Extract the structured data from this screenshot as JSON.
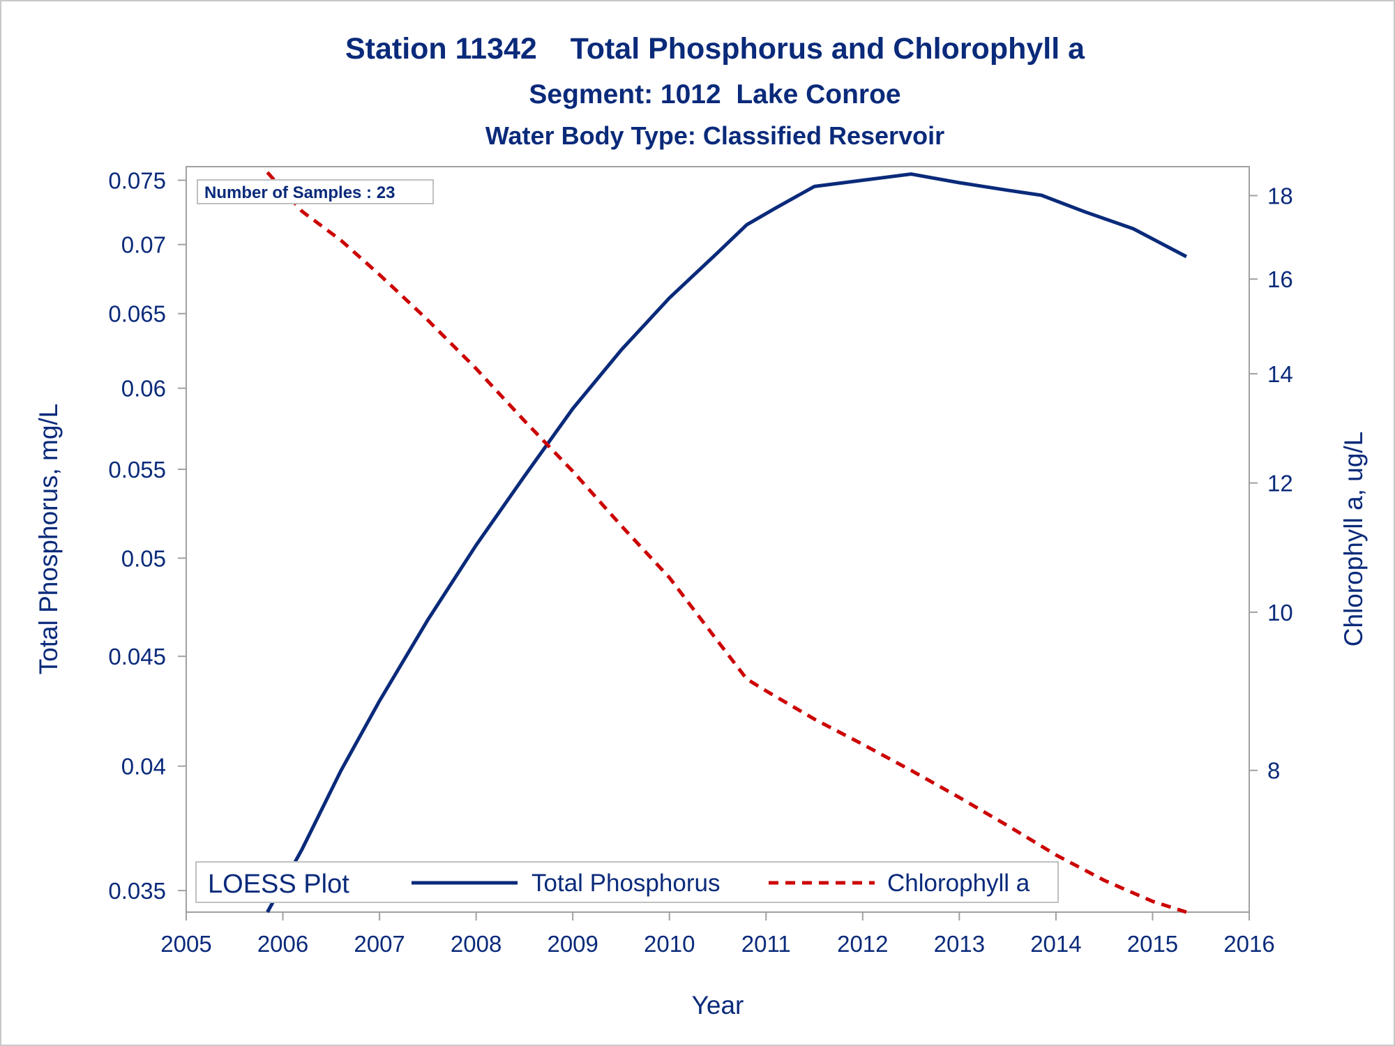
{
  "chart_data": {
    "type": "line",
    "title": "Station 11342    Total Phosphorus and Chlorophyll a",
    "subtitle": "Segment: 1012  Lake Conroe",
    "subtitle2": "Water Body Type: Classified Reservoir",
    "xlabel": "Year",
    "ylabel_left": "Total Phosphorus, mg/L",
    "ylabel_right": "Chlorophyll a, ug/L",
    "x_ticks": [
      "2005",
      "2006",
      "2007",
      "2008",
      "2009",
      "2010",
      "2011",
      "2012",
      "2013",
      "2014",
      "2015",
      "2016"
    ],
    "xlim": [
      2005,
      2016
    ],
    "y_left_ticks": [
      "0.035",
      "0.04",
      "0.045",
      "0.05",
      "0.055",
      "0.06",
      "0.065",
      "0.07",
      "0.075"
    ],
    "y_left_scale": "log",
    "y_left_lim": [
      0.0342,
      0.0761
    ],
    "y_right_ticks": [
      "8",
      "10",
      "12",
      "14",
      "16",
      "18"
    ],
    "y_right_scale": "log",
    "y_right_lim": [
      6.55,
      18.75
    ],
    "annotation": "Number of Samples : 23",
    "legend_title": "LOESS Plot",
    "legend_position": "bottom-inside",
    "grid": false,
    "series": [
      {
        "name": "Total Phosphorus",
        "axis": "left",
        "color": "#0a2a7a",
        "style": "solid",
        "x": [
          2005.84,
          2006.2,
          2006.6,
          2007.0,
          2007.5,
          2008.0,
          2008.5,
          2009.0,
          2009.5,
          2010.0,
          2010.5,
          2010.8,
          2011.1,
          2011.5,
          2012.0,
          2012.5,
          2013.0,
          2013.5,
          2013.85,
          2014.3,
          2014.8,
          2015.35
        ],
        "y": [
          0.0342,
          0.0366,
          0.0398,
          0.0429,
          0.0468,
          0.0507,
          0.0546,
          0.0587,
          0.0625,
          0.0661,
          0.0694,
          0.0715,
          0.0728,
          0.0745,
          0.075,
          0.0755,
          0.0748,
          0.0742,
          0.0738,
          0.0725,
          0.0712,
          0.0691
        ]
      },
      {
        "name": "Chlorophyll a",
        "axis": "right",
        "color": "#cc0000",
        "style": "dashed",
        "x": [
          2005.84,
          2006.2,
          2006.6,
          2007.0,
          2007.5,
          2008.0,
          2008.5,
          2009.0,
          2009.5,
          2010.0,
          2010.5,
          2010.8,
          2011.0,
          2011.5,
          2012.0,
          2012.5,
          2013.0,
          2013.5,
          2014.0,
          2014.5,
          2015.0,
          2015.35
        ],
        "y": [
          18.6,
          17.6,
          16.9,
          16.1,
          15.1,
          14.1,
          13.1,
          12.2,
          11.3,
          10.5,
          9.6,
          9.1,
          8.95,
          8.6,
          8.3,
          8.0,
          7.7,
          7.4,
          7.1,
          6.85,
          6.65,
          6.55
        ]
      }
    ]
  }
}
